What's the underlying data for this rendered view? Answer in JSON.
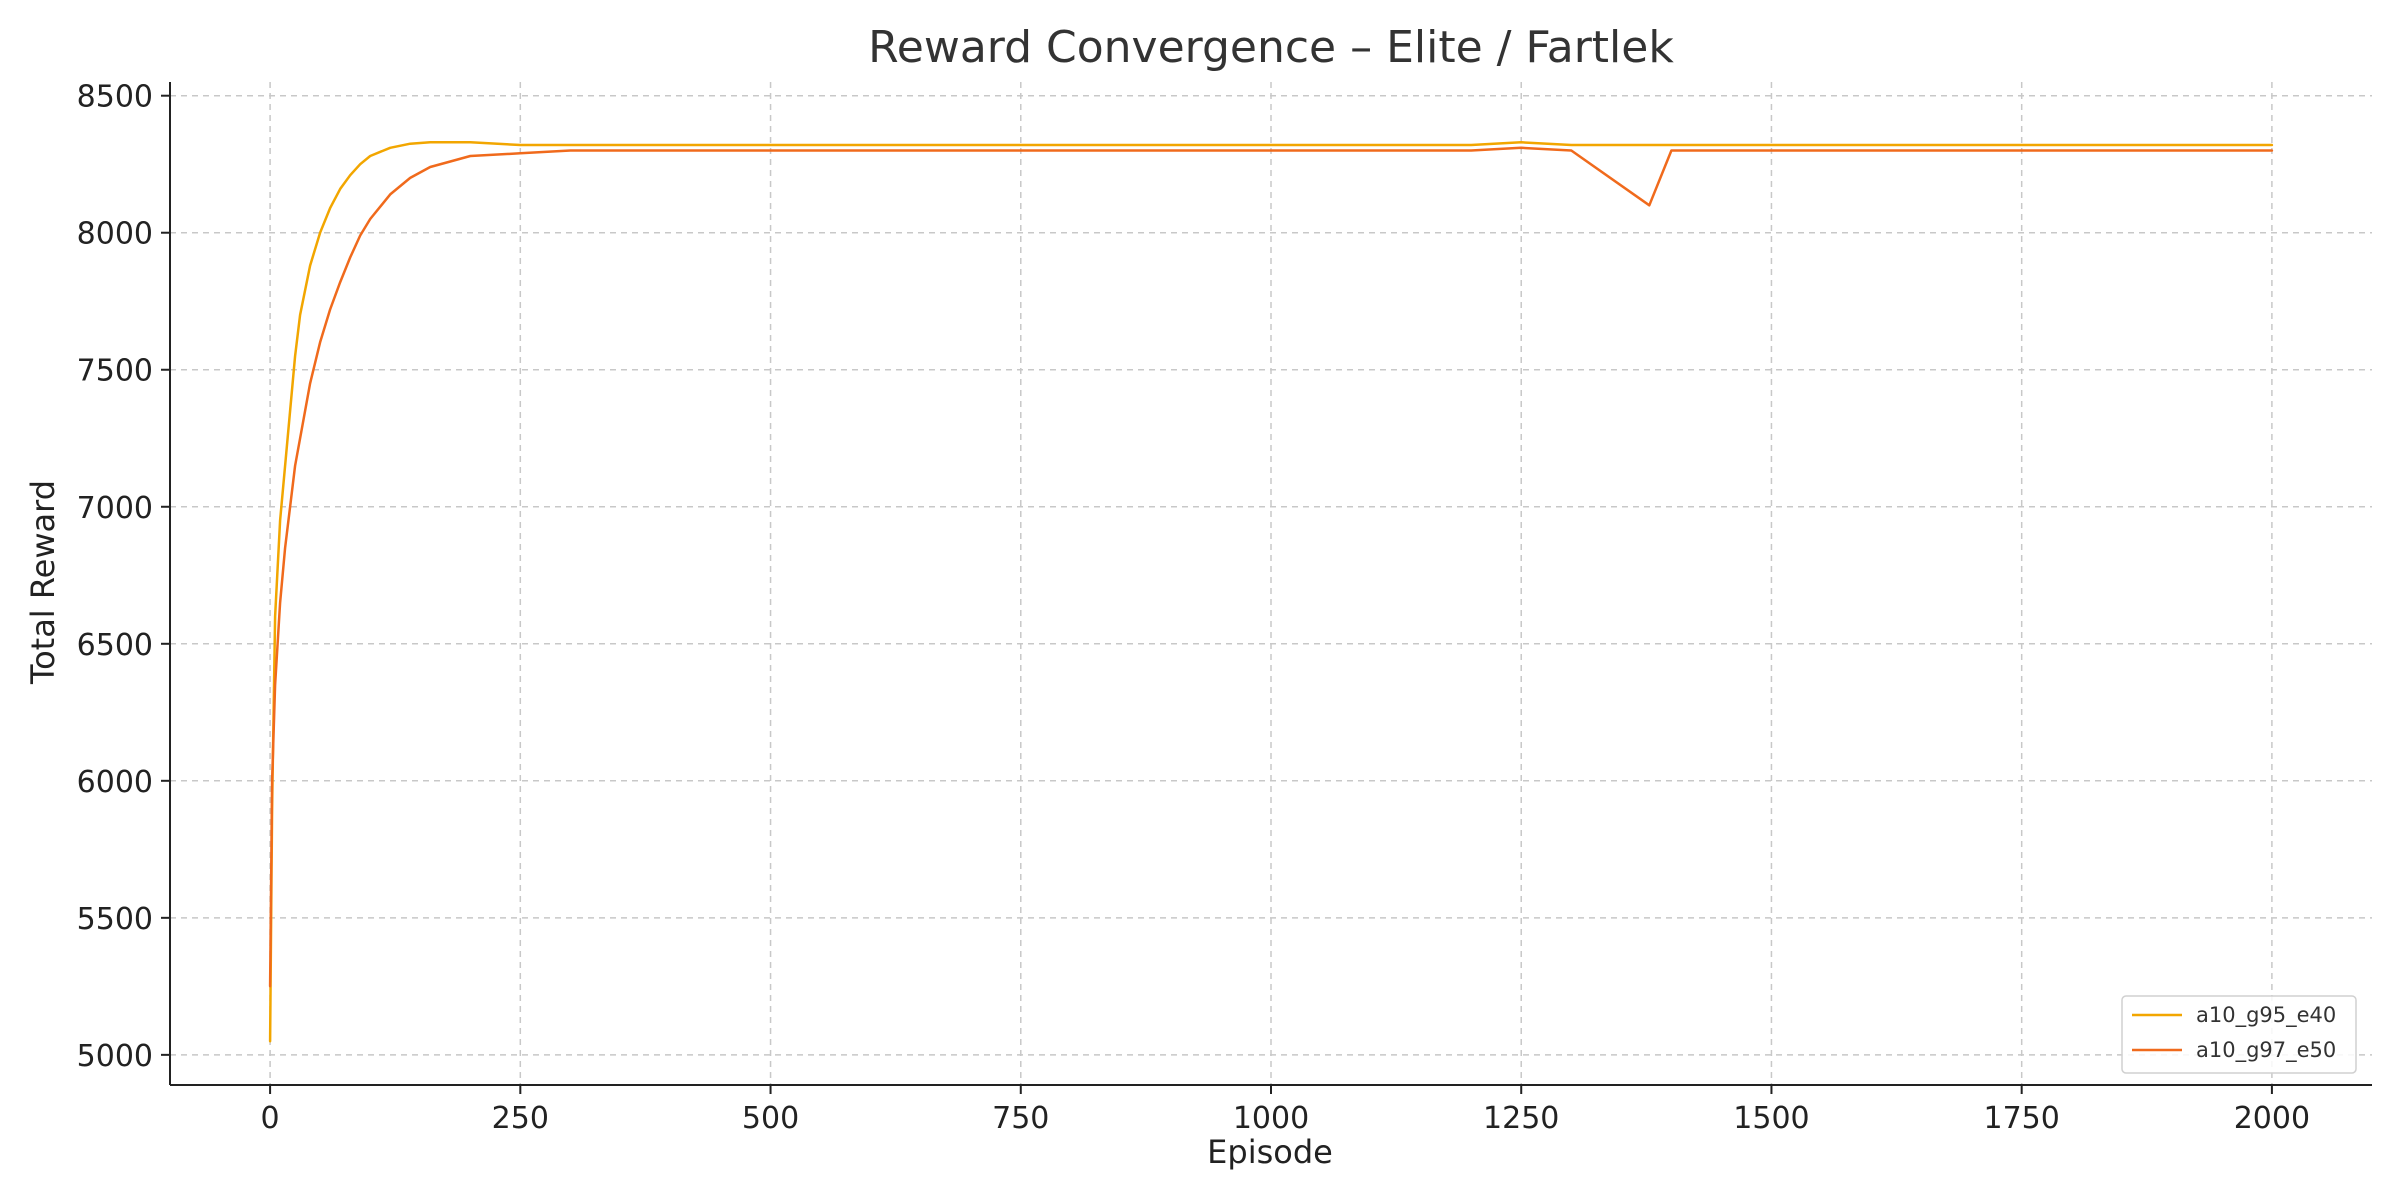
{
  "chart_data": {
    "type": "line",
    "title": "Reward Convergence – Elite / Fartlek",
    "xlabel": "Episode",
    "ylabel": "Total Reward",
    "xlim": [
      -100,
      2100
    ],
    "ylim": [
      4890,
      8550
    ],
    "xticks": [
      0,
      250,
      500,
      750,
      1000,
      1250,
      1500,
      1750,
      2000
    ],
    "xtick_labels": [
      "0",
      "250",
      "500",
      "750",
      "1000",
      "1250",
      "1500",
      "1750",
      "2000"
    ],
    "yticks": [
      5000,
      5500,
      6000,
      6500,
      7000,
      7500,
      8000,
      8500
    ],
    "ytick_labels": [
      "5000",
      "5500",
      "6000",
      "6500",
      "7000",
      "7500",
      "8000",
      "8500"
    ],
    "grid": true,
    "legend_position": "bottom-right",
    "colors": {
      "a10_g95_e40": "#f2a600",
      "a10_g97_e50": "#f06a1c"
    },
    "series": [
      {
        "name": "a10_g95_e40",
        "x": [
          0,
          2,
          5,
          10,
          15,
          20,
          25,
          30,
          40,
          50,
          60,
          70,
          80,
          90,
          100,
          120,
          140,
          160,
          180,
          200,
          250,
          300,
          400,
          500,
          600,
          700,
          800,
          900,
          1000,
          1100,
          1200,
          1250,
          1300,
          1400,
          1500,
          1600,
          1700,
          1800,
          1900,
          2000
        ],
        "y": [
          5050,
          5900,
          6600,
          6950,
          7150,
          7350,
          7550,
          7700,
          7880,
          8000,
          8090,
          8160,
          8210,
          8250,
          8280,
          8310,
          8325,
          8330,
          8330,
          8330,
          8320,
          8320,
          8320,
          8320,
          8320,
          8320,
          8320,
          8320,
          8320,
          8320,
          8320,
          8330,
          8320,
          8320,
          8320,
          8320,
          8320,
          8320,
          8320,
          8320
        ]
      },
      {
        "name": "a10_g97_e50",
        "x": [
          0,
          2,
          5,
          10,
          15,
          20,
          25,
          30,
          40,
          50,
          60,
          70,
          80,
          90,
          100,
          120,
          140,
          160,
          180,
          200,
          250,
          300,
          400,
          500,
          600,
          700,
          800,
          900,
          1000,
          1100,
          1200,
          1250,
          1300,
          1378,
          1400,
          1500,
          1600,
          1700,
          1800,
          1900,
          2000
        ],
        "y": [
          5250,
          6000,
          6350,
          6650,
          6850,
          7000,
          7150,
          7250,
          7450,
          7600,
          7720,
          7820,
          7910,
          7990,
          8050,
          8140,
          8200,
          8240,
          8260,
          8280,
          8290,
          8300,
          8300,
          8300,
          8300,
          8300,
          8300,
          8300,
          8300,
          8300,
          8300,
          8310,
          8300,
          8100,
          8300,
          8300,
          8300,
          8300,
          8300,
          8300,
          8300
        ]
      }
    ]
  }
}
